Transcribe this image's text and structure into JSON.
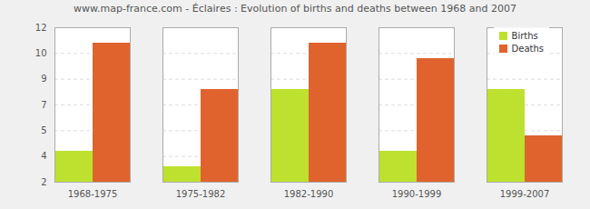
{
  "chart_data": {
    "type": "bar",
    "title": "www.map-france.com - Éclaires : Evolution of births and deaths between 1968 and 2007",
    "categories": [
      "1968-1975",
      "1975-1982",
      "1982-1990",
      "1990-1999",
      "1999-2007"
    ],
    "series": [
      {
        "name": "Births",
        "color": "#bde12e",
        "values": [
          4,
          3,
          8,
          4,
          8
        ]
      },
      {
        "name": "Deaths",
        "color": "#e0632d",
        "values": [
          11,
          8,
          11,
          10,
          5
        ]
      }
    ],
    "ylim": [
      2,
      12
    ],
    "yticks": [
      2,
      {
        "value": 3.667,
        "label": "4"
      },
      {
        "value": 5.333,
        "label": "5"
      },
      7,
      {
        "value": 8.667,
        "label": "9"
      },
      {
        "value": 10.333,
        "label": "10"
      },
      12
    ],
    "grid": true,
    "legend": "top-right"
  }
}
